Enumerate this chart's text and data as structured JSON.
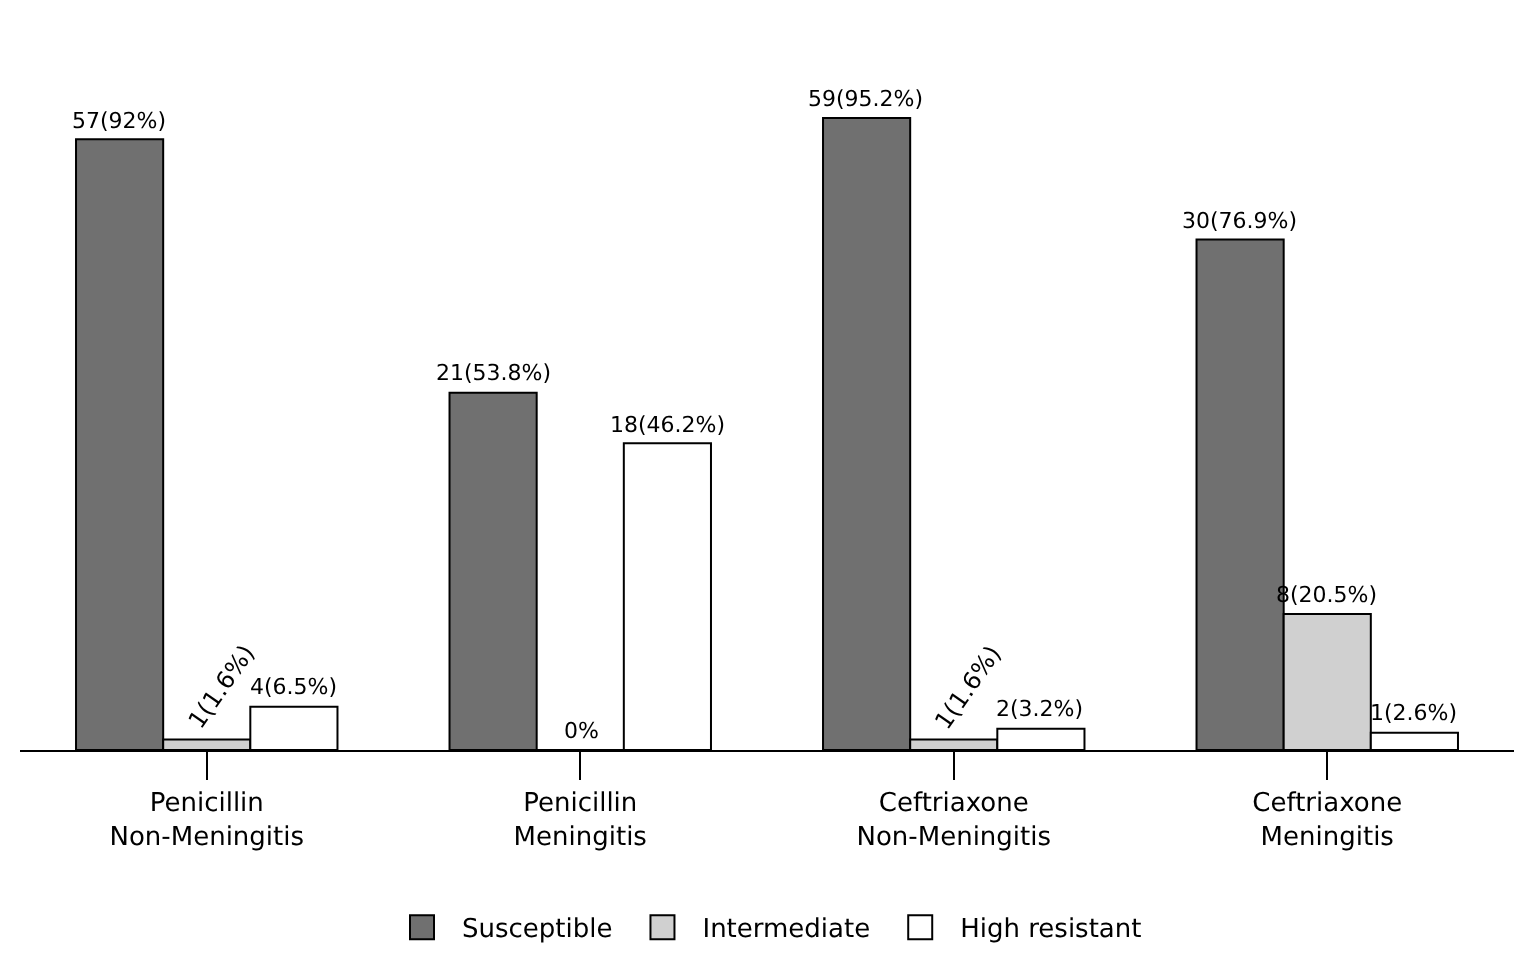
{
  "chart_data": {
    "type": "bar",
    "categories": [
      "Penicillin\nNon-Meningitis",
      "Penicillin\nMeningitis",
      "Ceftriaxone\nNon-Meningitis",
      "Ceftriaxone\nMeningitis"
    ],
    "series": [
      {
        "name": "Susceptible",
        "color": "#707070",
        "values": [
          92,
          53.8,
          95.2,
          76.9
        ],
        "value_labels": [
          "57(92%)",
          "21(53.8%)",
          "59(95.2%)",
          "30(76.9%)"
        ]
      },
      {
        "name": "Intermediate",
        "color": "#d0d0d0",
        "values": [
          1.6,
          0,
          1.6,
          20.5
        ],
        "value_labels": [
          "1(1.6%)",
          "0%",
          "1(1.6%)",
          "8(20.5%)"
        ]
      },
      {
        "name": "High resistant",
        "color": "#ffffff",
        "values": [
          6.5,
          46.2,
          3.2,
          2.6
        ],
        "value_labels": [
          "4(6.5%)",
          "18(46.2%)",
          "2(3.2%)",
          "1(2.6%)"
        ]
      }
    ],
    "legend": "bottom"
  }
}
